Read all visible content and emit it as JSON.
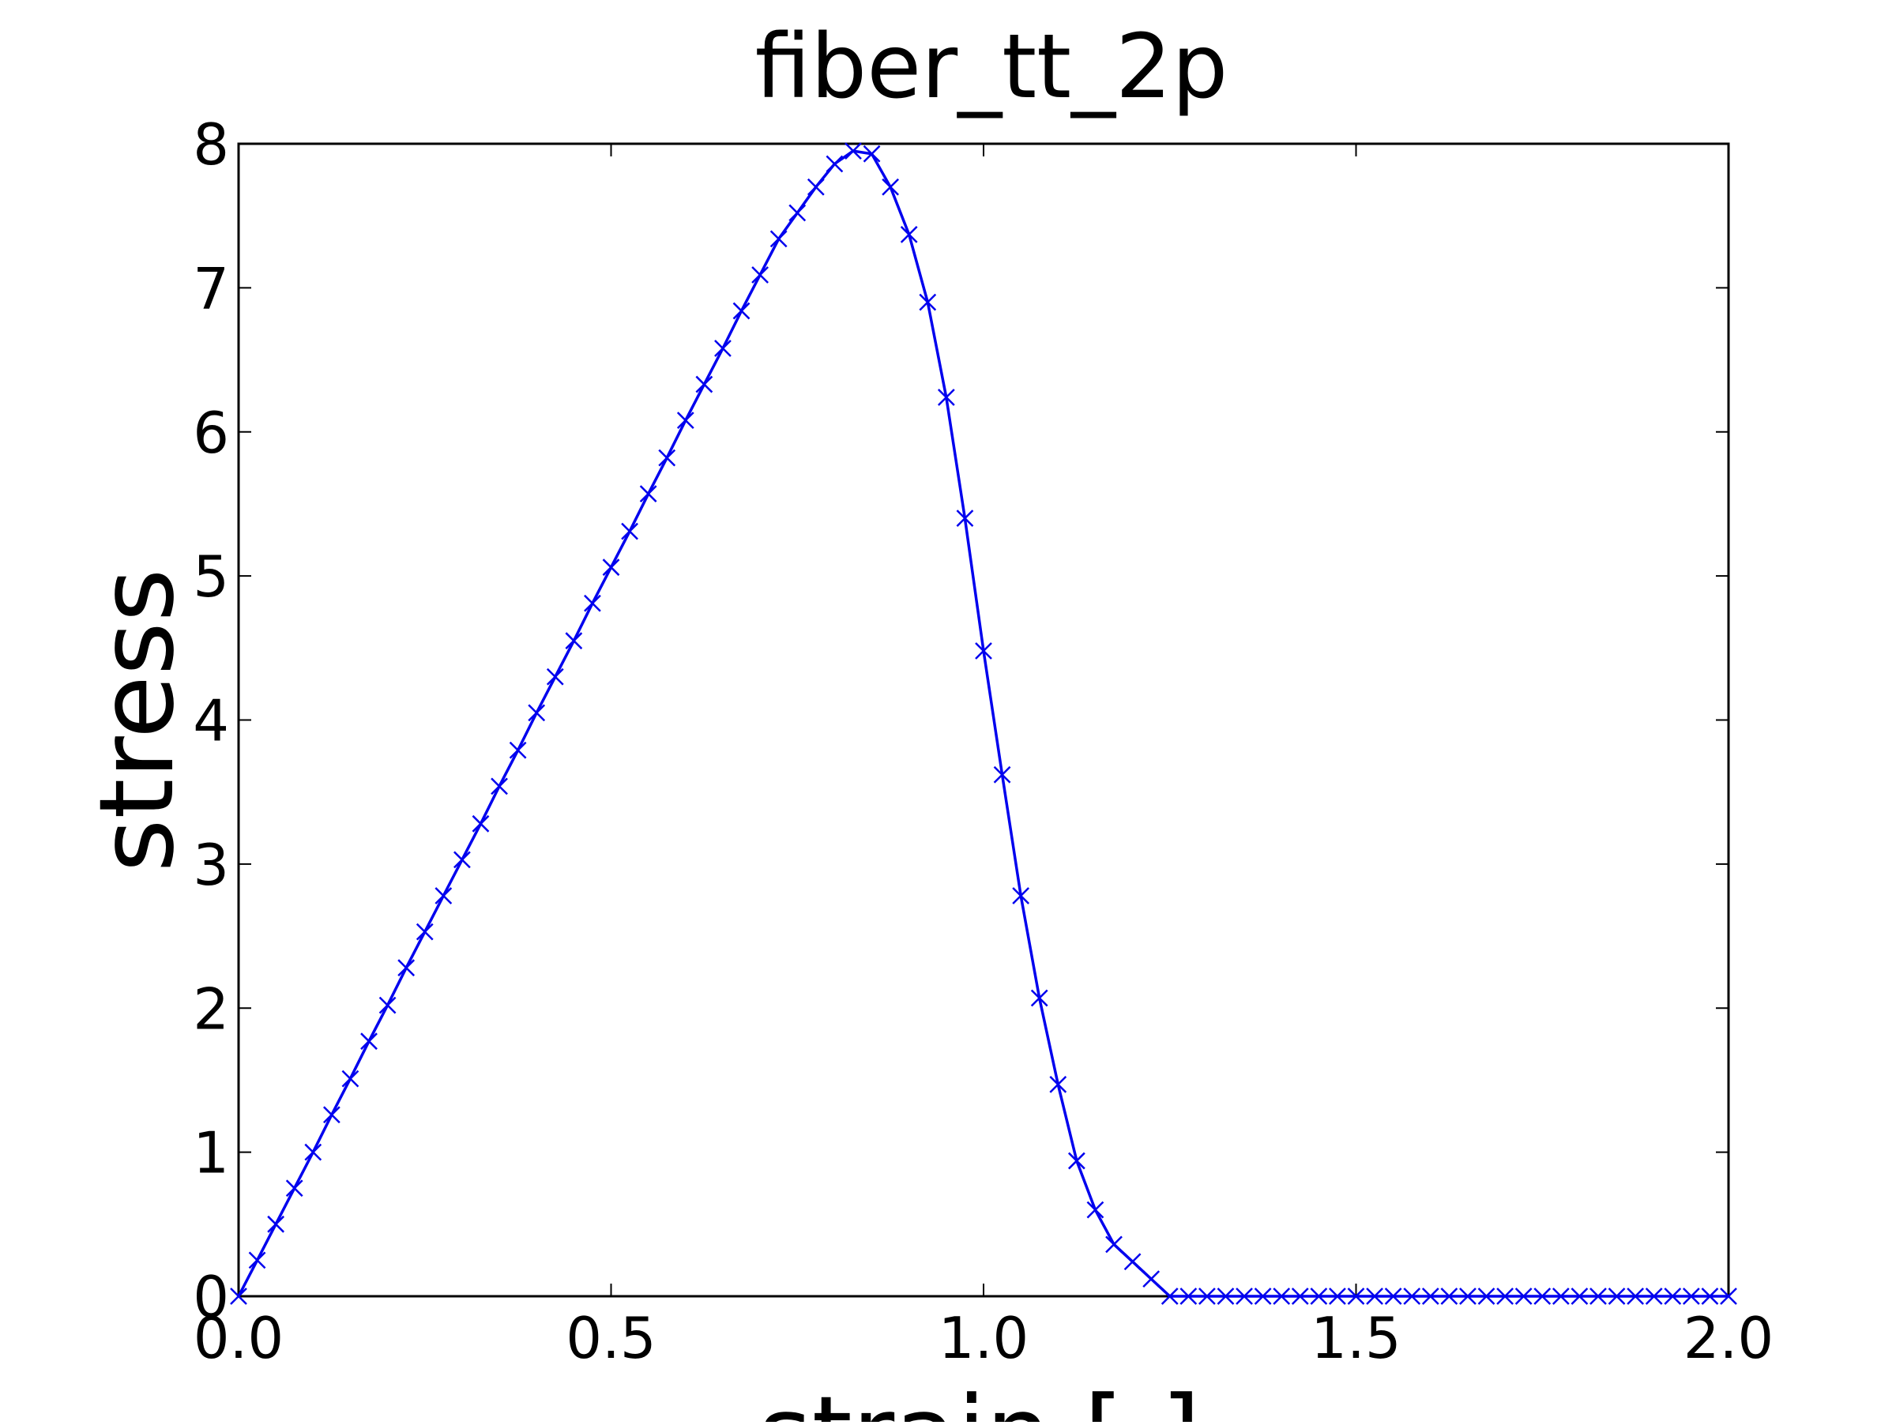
{
  "chart_data": {
    "type": "line",
    "title": "fiber_tt_2p",
    "xlabel": "strain [-]",
    "ylabel": "stress",
    "xlim": [
      0.0,
      2.0
    ],
    "ylim": [
      0,
      8
    ],
    "x_ticks": [
      "0.0",
      "0.5",
      "1.0",
      "1.5",
      "2.0"
    ],
    "y_ticks": [
      "0",
      "1",
      "2",
      "3",
      "4",
      "5",
      "6",
      "7",
      "8"
    ],
    "grid": false,
    "legend": "none",
    "series": [
      {
        "color": "#0000ee",
        "marker": "x",
        "x": [
          0.0,
          0.025,
          0.05,
          0.075,
          0.1,
          0.125,
          0.15,
          0.175,
          0.2,
          0.225,
          0.25,
          0.275,
          0.3,
          0.325,
          0.35,
          0.375,
          0.4,
          0.425,
          0.45,
          0.475,
          0.5,
          0.525,
          0.55,
          0.575,
          0.6,
          0.625,
          0.65,
          0.675,
          0.7,
          0.725,
          0.75,
          0.775,
          0.8,
          0.825,
          0.85,
          0.875,
          0.9,
          0.925,
          0.95,
          0.975,
          1.0,
          1.025,
          1.05,
          1.075,
          1.1,
          1.125,
          1.15,
          1.175,
          1.2,
          1.225,
          1.25,
          1.275,
          1.3,
          1.325,
          1.35,
          1.375,
          1.4,
          1.425,
          1.45,
          1.475,
          1.5,
          1.525,
          1.55,
          1.575,
          1.6,
          1.625,
          1.65,
          1.675,
          1.7,
          1.725,
          1.75,
          1.775,
          1.8,
          1.825,
          1.85,
          1.875,
          1.9,
          1.925,
          1.95,
          1.975,
          2.0
        ],
        "y": [
          0.0,
          0.25,
          0.5,
          0.75,
          1.0,
          1.26,
          1.51,
          1.77,
          2.02,
          2.28,
          2.53,
          2.78,
          3.03,
          3.28,
          3.54,
          3.79,
          4.05,
          4.3,
          4.55,
          4.81,
          5.06,
          5.31,
          5.57,
          5.82,
          6.08,
          6.33,
          6.58,
          6.84,
          7.09,
          7.34,
          7.52,
          7.7,
          7.86,
          7.95,
          7.93,
          7.7,
          7.37,
          6.9,
          6.24,
          5.4,
          4.48,
          3.62,
          2.78,
          2.07,
          1.47,
          0.94,
          0.6,
          0.36,
          0.24,
          0.12,
          0.0,
          0.0,
          0.0,
          0.0,
          0.0,
          0.0,
          0.0,
          0.0,
          0.0,
          0.0,
          0.0,
          0.0,
          0.0,
          0.0,
          0.0,
          0.0,
          0.0,
          0.0,
          0.0,
          0.0,
          0.0,
          0.0,
          0.0,
          0.0,
          0.0,
          0.0,
          0.0,
          0.0,
          0.0,
          0.0,
          0.0
        ]
      }
    ]
  }
}
